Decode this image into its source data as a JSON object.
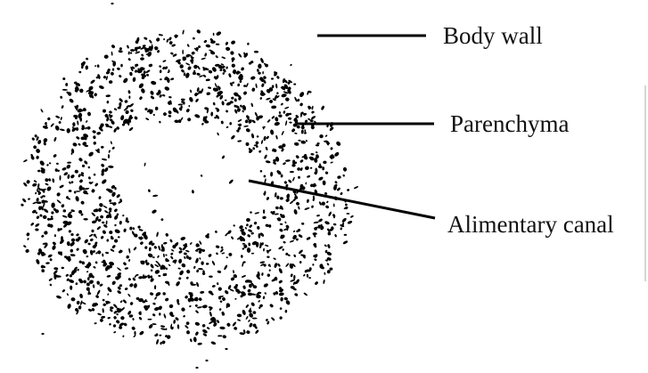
{
  "diagram": {
    "labels": {
      "body_wall": "Body wall",
      "parenchyma": "Parenchyma",
      "alimentary_canal": "Alimentary canal"
    },
    "colors": {
      "ink": "#000000",
      "text": "#111111",
      "background": "#ffffff"
    }
  }
}
